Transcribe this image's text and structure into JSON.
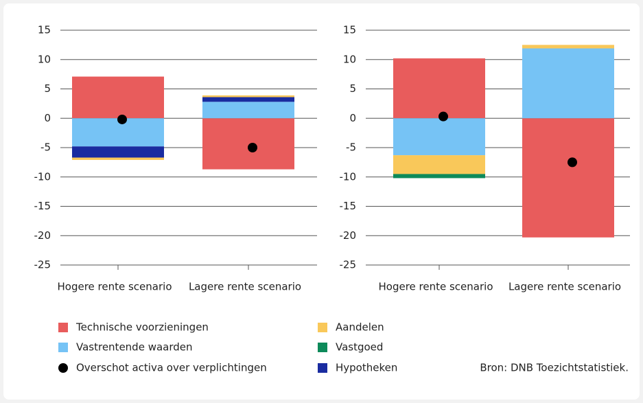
{
  "chart_data": [
    {
      "type": "bar",
      "stacked": true,
      "categories": [
        "Hogere rente scenario",
        "Lagere rente scenario"
      ],
      "ylim": [
        -25,
        15
      ],
      "yticks": [
        15,
        10,
        5,
        0,
        -5,
        -10,
        -15,
        -20,
        -25
      ],
      "grid": true,
      "series": [
        {
          "name": "Technische voorzieningen",
          "color": "#e85c5c",
          "values": [
            7.1,
            -8.7
          ]
        },
        {
          "name": "Vastrentende waarden",
          "color": "#76c3f5",
          "values": [
            -4.8,
            2.8
          ]
        },
        {
          "name": "Aandelen",
          "color": "#f9c85a",
          "values": [
            -0.4,
            0.3
          ]
        },
        {
          "name": "Vastgoed",
          "color": "#0d8a5a",
          "values": [
            0,
            0
          ]
        },
        {
          "name": "Hypotheken",
          "color": "#1a2ca0",
          "values": [
            -1.9,
            0.8
          ]
        },
        {
          "name": "Overschot activa over verplichtingen",
          "type": "dot",
          "color": "#000000",
          "values": [
            -0.2,
            -5.0
          ]
        }
      ]
    },
    {
      "type": "bar",
      "stacked": true,
      "categories": [
        "Hogere rente scenario",
        "Lagere rente scenario"
      ],
      "ylim": [
        -25,
        15
      ],
      "yticks": [
        15,
        10,
        5,
        0,
        -5,
        -10,
        -15,
        -20,
        -25
      ],
      "grid": true,
      "series": [
        {
          "name": "Technische voorzieningen",
          "color": "#e85c5c",
          "values": [
            10.2,
            -20.3
          ]
        },
        {
          "name": "Vastrentende waarden",
          "color": "#76c3f5",
          "values": [
            -6.3,
            11.9
          ]
        },
        {
          "name": "Aandelen",
          "color": "#f9c85a",
          "values": [
            -3.2,
            0.6
          ]
        },
        {
          "name": "Vastgoed",
          "color": "#0d8a5a",
          "values": [
            -0.7,
            0
          ]
        },
        {
          "name": "Hypotheken",
          "color": "#1a2ca0",
          "values": [
            0,
            0
          ]
        },
        {
          "name": "Overschot activa over verplichtingen",
          "type": "dot",
          "color": "#000000",
          "values": [
            0.3,
            -7.5
          ]
        }
      ]
    }
  ],
  "source": "Bron: DNB Toezichtstatistiek."
}
